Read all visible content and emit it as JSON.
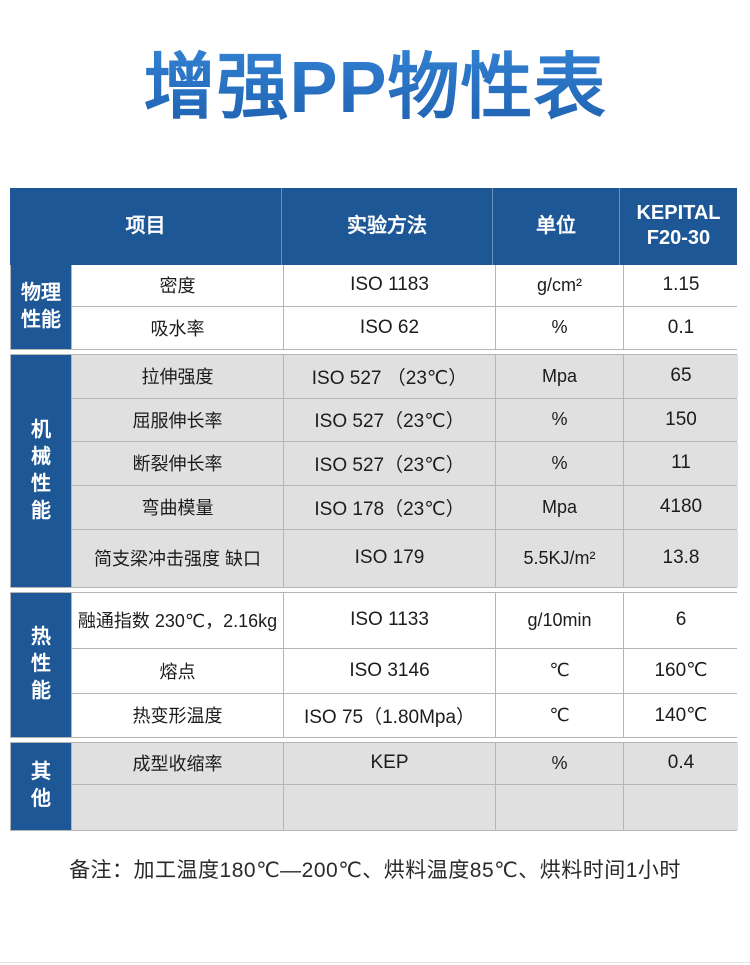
{
  "title": "增强PP物性表",
  "header": {
    "item": "项目",
    "method": "实验方法",
    "unit": "单位",
    "product": "KEPITAL\nF20-30"
  },
  "sections": [
    {
      "category": "物理性能",
      "shade": "white",
      "rows": [
        {
          "item": "密度",
          "method": "ISO 1183",
          "unit": "g/cm²",
          "value": "1.15"
        },
        {
          "item": "吸水率",
          "method": "ISO 62",
          "unit": "%",
          "value": "0.1"
        }
      ]
    },
    {
      "category": "机械性能",
      "shade": "gray",
      "rows": [
        {
          "item": "拉伸强度",
          "method": "ISO 527 （23℃）",
          "unit": "Mpa",
          "value": "65"
        },
        {
          "item": "屈服伸长率",
          "method": "ISO 527（23℃）",
          "unit": "%",
          "value": "150"
        },
        {
          "item": "断裂伸长率",
          "method": "ISO 527（23℃）",
          "unit": "%",
          "value": "11"
        },
        {
          "item": "弯曲模量",
          "method": "ISO 178（23℃）",
          "unit": "Mpa",
          "value": "4180"
        },
        {
          "item": "简支梁冲击强度  缺口",
          "method": "ISO 179",
          "unit": "5.5KJ/m²",
          "value": "13.8"
        }
      ]
    },
    {
      "category": "热性能",
      "shade": "white",
      "rows": [
        {
          "item": "融通指数 230℃，2.16kg",
          "method": "ISO 1133",
          "unit": "g/10min",
          "value": "6"
        },
        {
          "item": "熔点",
          "method": "ISO 3146",
          "unit": "℃",
          "value": "160℃"
        },
        {
          "item": "热变形温度",
          "method": "ISO 75（1.80Mpa）",
          "unit": "℃",
          "value": "140℃"
        }
      ]
    },
    {
      "category": "其他",
      "shade": "gray",
      "rows": [
        {
          "item": "成型收缩率",
          "method": "KEP",
          "unit": "%",
          "value": "0.4"
        },
        {
          "item": "",
          "method": "",
          "unit": "",
          "value": ""
        }
      ]
    }
  ],
  "footer_note": "备注：加工温度180℃—200℃、烘料温度85℃、烘料时间1小时",
  "colors": {
    "header_blue": "#1e5796",
    "row_gray": "#e0e0e0",
    "border_gray": "#b5b5b5",
    "title_gradient_top": "#4b97e2",
    "title_gradient_bottom": "#1d5fae"
  }
}
